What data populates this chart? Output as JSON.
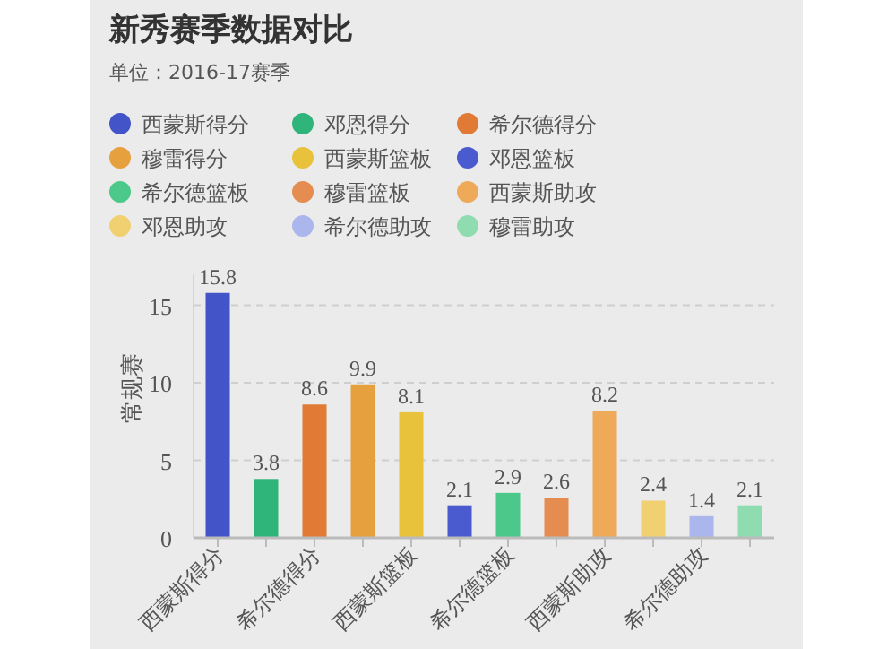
{
  "chart_data": {
    "type": "bar",
    "title": "新秀赛季数据对比",
    "subtitle": "单位：2016-17赛季",
    "ylabel": "常规赛",
    "categories": [
      "西蒙斯得分",
      null,
      "希尔德得分",
      null,
      "西蒙斯篮板",
      null,
      "希尔德篮板",
      null,
      "西蒙斯助攻",
      null,
      "希尔德助攻",
      null
    ],
    "series": [
      {
        "name": "西蒙斯得分",
        "color": "#4353c8",
        "values": [
          15.8,
          null,
          null,
          null,
          null,
          null,
          null,
          null,
          null,
          null,
          null,
          null
        ]
      },
      {
        "name": "邓恩得分",
        "color": "#2fb57a",
        "values": [
          null,
          3.8,
          null,
          null,
          null,
          null,
          null,
          null,
          null,
          null,
          null,
          null
        ]
      },
      {
        "name": "希尔德得分",
        "color": "#e07a35",
        "values": [
          null,
          null,
          8.6,
          null,
          null,
          null,
          null,
          null,
          null,
          null,
          null,
          null
        ]
      },
      {
        "name": "穆雷得分",
        "color": "#e6a03e",
        "values": [
          null,
          null,
          null,
          9.9,
          null,
          null,
          null,
          null,
          null,
          null,
          null,
          null
        ]
      },
      {
        "name": "西蒙斯篮板",
        "color": "#e8c23a",
        "values": [
          null,
          null,
          null,
          null,
          8.1,
          null,
          null,
          null,
          null,
          null,
          null,
          null
        ]
      },
      {
        "name": "邓恩篮板",
        "color": "#4a5bd0",
        "values": [
          null,
          null,
          null,
          null,
          null,
          2.1,
          null,
          null,
          null,
          null,
          null,
          null
        ]
      },
      {
        "name": "希尔德篮板",
        "color": "#4cc98a",
        "values": [
          null,
          null,
          null,
          null,
          null,
          null,
          2.9,
          null,
          null,
          null,
          null,
          null
        ]
      },
      {
        "name": "穆雷篮板",
        "color": "#e58c50",
        "values": [
          null,
          null,
          null,
          null,
          null,
          null,
          null,
          2.6,
          null,
          null,
          null,
          null
        ]
      },
      {
        "name": "西蒙斯助攻",
        "color": "#eeaa58",
        "values": [
          null,
          null,
          null,
          null,
          null,
          null,
          null,
          null,
          8.2,
          null,
          null,
          null
        ]
      },
      {
        "name": "邓恩助攻",
        "color": "#f0d070",
        "values": [
          null,
          null,
          null,
          null,
          null,
          null,
          null,
          null,
          null,
          2.4,
          null,
          null
        ]
      },
      {
        "name": "希尔德助攻",
        "color": "#aab6ec",
        "values": [
          null,
          null,
          null,
          null,
          null,
          null,
          null,
          null,
          null,
          null,
          1.4,
          null
        ]
      },
      {
        "name": "穆雷助攻",
        "color": "#8fdcb0",
        "values": [
          null,
          null,
          null,
          null,
          null,
          null,
          null,
          null,
          null,
          null,
          null,
          2.1
        ]
      }
    ],
    "ylim": [
      0,
      17
    ],
    "yticks": [
      0,
      5,
      10,
      15
    ],
    "grid": "y",
    "data_labels": true,
    "legend": "top left"
  }
}
